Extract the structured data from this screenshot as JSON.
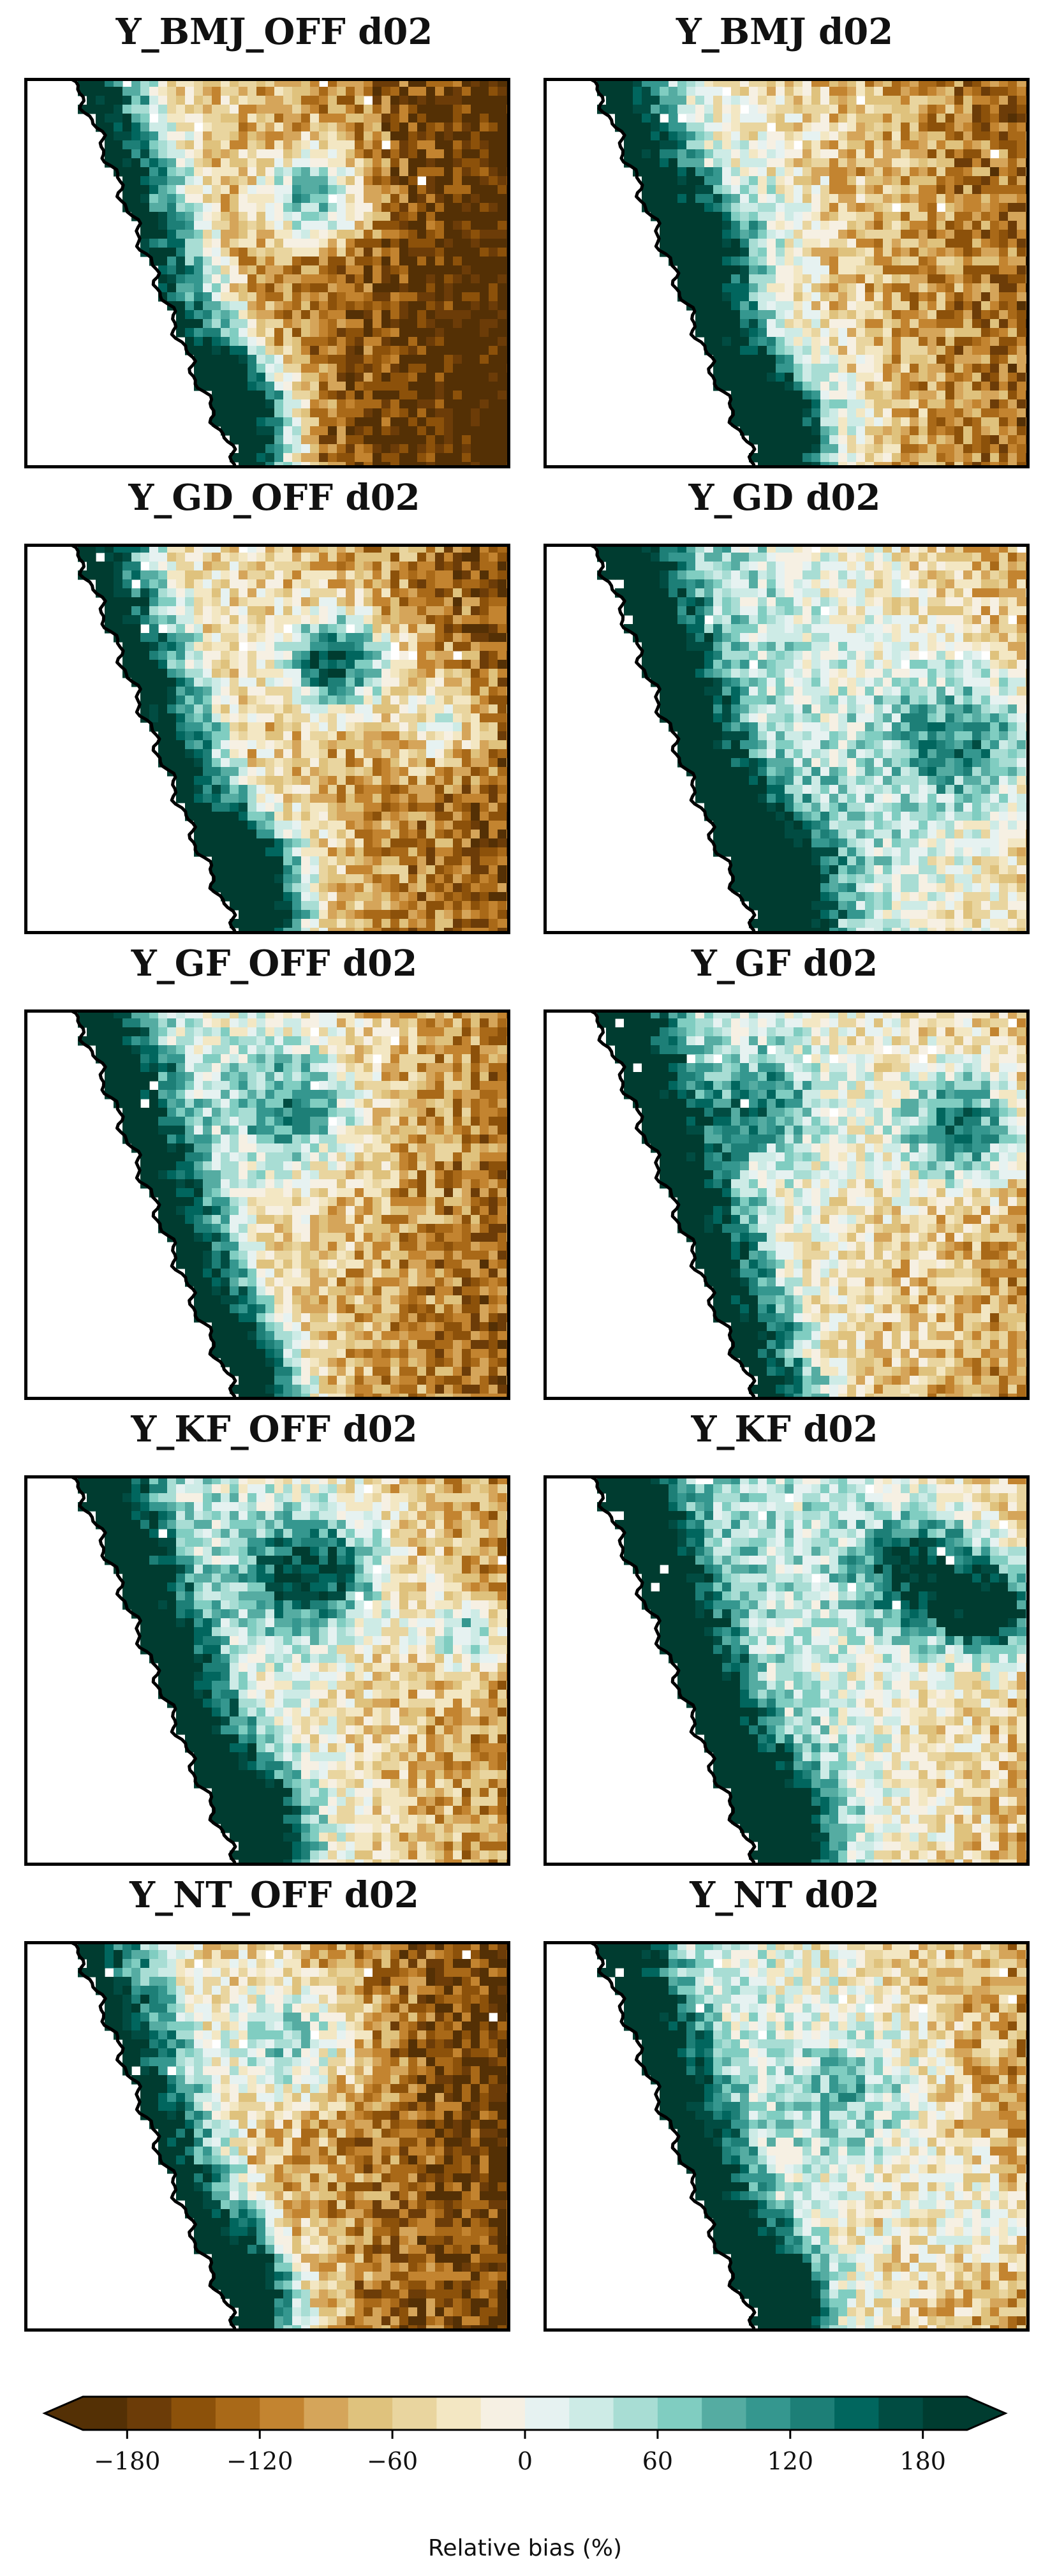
{
  "panels": [
    {
      "title": "Y_BMJ_OFF d02"
    },
    {
      "title": "Y_BMJ d02"
    },
    {
      "title": "Y_GD_OFF d02"
    },
    {
      "title": "Y_GD d02"
    },
    {
      "title": "Y_GF_OFF d02"
    },
    {
      "title": "Y_GF d02"
    },
    {
      "title": "Y_KF_OFF d02"
    },
    {
      "title": "Y_KF d02"
    },
    {
      "title": "Y_NT_OFF d02"
    },
    {
      "title": "Y_NT d02"
    }
  ],
  "colorbar": {
    "label": "Relative bias (%)",
    "range": [
      -200,
      200
    ],
    "step": 20,
    "ticks": [
      {
        "value": -180,
        "label": "−180"
      },
      {
        "value": -120,
        "label": "−120"
      },
      {
        "value": -60,
        "label": "−60"
      },
      {
        "value": 0,
        "label": "0"
      },
      {
        "value": 60,
        "label": "60"
      },
      {
        "value": 120,
        "label": "120"
      },
      {
        "value": 180,
        "label": "180"
      }
    ],
    "extend": "both",
    "colors": [
      "#543005",
      "#6c3c08",
      "#8c510a",
      "#a96918",
      "#c38430",
      "#d5a55a",
      "#dfc27d",
      "#e9d59f",
      "#f3e7c3",
      "#f6f0e3",
      "#e6f2f1",
      "#cdebe6",
      "#a8ddd4",
      "#80cdc1",
      "#55aca2",
      "#35978f",
      "#1d7f77",
      "#01665e",
      "#014c42",
      "#003c30"
    ]
  }
}
